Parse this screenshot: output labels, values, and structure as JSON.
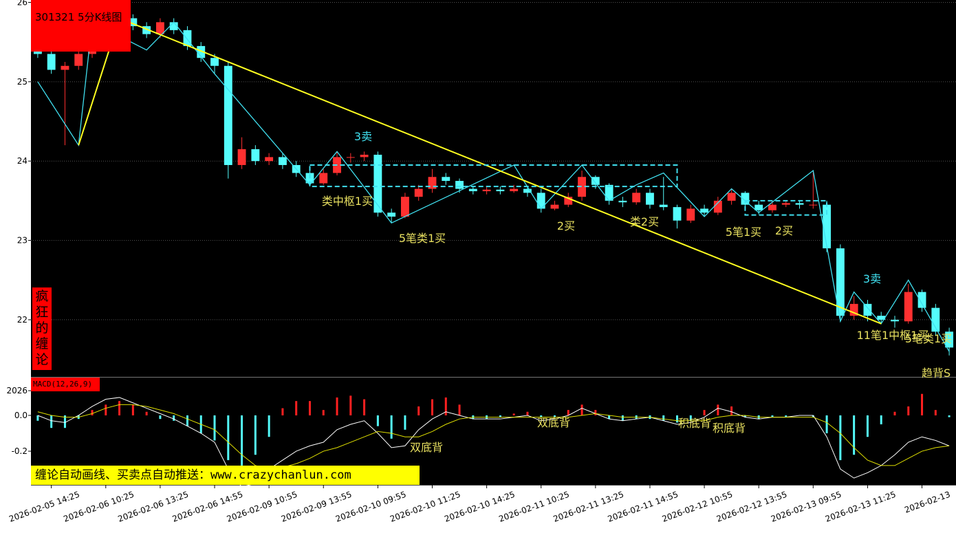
{
  "chart_data": [
    {
      "type": "candlestick",
      "title": "301321 5分K线图",
      "side_label": "疯狂的缠论",
      "banner": "缠论自动画线、买卖点自动推送：www.crazychanlun.com",
      "up_color": "#ff3030",
      "down_color": "#54fcfc",
      "categories": [
        null,
        "2026-02-05 14:25",
        null,
        null,
        null,
        "2026-02-06 10:25",
        null,
        null,
        null,
        "2026-02-06 13:25",
        null,
        null,
        null,
        "2026-02-06 14:55",
        null,
        null,
        null,
        "2026-02-09 10:55",
        null,
        null,
        null,
        "2026-02-09 13:55",
        null,
        null,
        null,
        "2026-02-10 09:55",
        null,
        null,
        null,
        "2026-02-10 11:25",
        null,
        null,
        null,
        "2026-02-10 14:25",
        null,
        null,
        null,
        "2026-02-11 10:25",
        null,
        null,
        null,
        "2026-02-11 13:25",
        null,
        null,
        null,
        "2026-02-11 14:55",
        null,
        null,
        null,
        "2026-02-12 10:55",
        null,
        null,
        null,
        "2026-02-12 13:55",
        null,
        null,
        null,
        "2026-02-13 09:55",
        null,
        null,
        null,
        "2026-02-13 11:25",
        null,
        null,
        null,
        "2026-02-13",
        null,
        null
      ],
      "open": [
        25.4,
        25.35,
        25.15,
        25.2,
        25.35,
        25.55,
        25.7,
        25.8,
        25.7,
        25.6,
        25.75,
        25.65,
        25.45,
        25.3,
        25.2,
        23.95,
        24.15,
        24.0,
        24.05,
        23.95,
        23.85,
        23.72,
        23.85,
        24.05,
        24.05,
        24.08,
        23.35,
        23.3,
        23.55,
        23.65,
        23.8,
        23.75,
        23.65,
        23.62,
        23.64,
        23.62,
        23.65,
        23.6,
        23.4,
        23.45,
        23.55,
        23.8,
        23.7,
        23.5,
        23.48,
        23.6,
        23.45,
        23.42,
        23.25,
        23.4,
        23.35,
        23.5,
        23.6,
        23.45,
        23.38,
        23.45,
        23.47,
        23.45,
        23.45,
        22.9,
        22.05,
        22.2,
        22.05,
        22.0,
        21.98,
        22.35,
        22.15,
        21.85
      ],
      "high": [
        25.45,
        25.4,
        25.25,
        25.4,
        25.6,
        25.75,
        25.85,
        25.85,
        25.75,
        25.8,
        25.8,
        25.7,
        25.5,
        25.35,
        25.25,
        24.3,
        24.2,
        24.1,
        24.1,
        24.0,
        23.9,
        23.9,
        24.12,
        24.1,
        24.12,
        24.12,
        23.4,
        23.6,
        23.7,
        23.9,
        23.85,
        23.78,
        23.68,
        23.68,
        23.68,
        23.7,
        23.68,
        23.65,
        23.5,
        23.6,
        23.88,
        23.82,
        23.72,
        23.55,
        23.65,
        23.65,
        23.8,
        23.45,
        23.45,
        23.45,
        23.55,
        23.65,
        23.62,
        23.5,
        23.5,
        23.5,
        23.5,
        23.88,
        23.5,
        22.95,
        22.3,
        22.25,
        22.1,
        22.05,
        22.45,
        22.38,
        22.2,
        21.9
      ],
      "low": [
        25.3,
        25.1,
        24.2,
        25.15,
        25.3,
        25.5,
        25.65,
        25.65,
        25.55,
        25.55,
        25.6,
        25.4,
        25.25,
        25.1,
        23.78,
        23.9,
        23.95,
        23.95,
        23.9,
        23.8,
        23.68,
        23.7,
        23.82,
        23.98,
        24.0,
        23.3,
        23.22,
        23.28,
        23.5,
        23.6,
        23.7,
        23.6,
        23.58,
        23.58,
        23.58,
        23.6,
        23.55,
        23.35,
        23.38,
        23.42,
        23.5,
        23.65,
        23.45,
        23.42,
        23.45,
        23.4,
        23.38,
        23.15,
        23.22,
        23.3,
        23.32,
        23.45,
        23.4,
        23.33,
        23.35,
        23.42,
        23.4,
        23.4,
        22.85,
        21.98,
        22.0,
        21.98,
        21.95,
        21.9,
        21.95,
        22.1,
        21.8,
        21.55
      ],
      "close": [
        25.35,
        25.15,
        25.2,
        25.35,
        25.55,
        25.7,
        25.8,
        25.7,
        25.6,
        25.75,
        25.65,
        25.45,
        25.3,
        25.2,
        23.95,
        24.15,
        24.0,
        24.05,
        23.95,
        23.85,
        23.72,
        23.85,
        24.05,
        24.05,
        24.08,
        23.35,
        23.3,
        23.55,
        23.65,
        23.8,
        23.75,
        23.65,
        23.62,
        23.64,
        23.62,
        23.65,
        23.6,
        23.4,
        23.45,
        23.55,
        23.8,
        23.7,
        23.5,
        23.48,
        23.6,
        23.45,
        23.42,
        23.25,
        23.4,
        23.35,
        23.5,
        23.6,
        23.45,
        23.38,
        23.45,
        23.47,
        23.45,
        23.45,
        22.9,
        22.05,
        22.2,
        22.05,
        22.0,
        21.98,
        22.35,
        22.15,
        21.85,
        21.65
      ],
      "overlays": [
        {
          "color": "#40e0f0",
          "x": [
            0,
            3,
            4,
            8,
            10,
            13,
            20,
            22,
            26,
            35,
            37,
            40,
            42,
            44,
            46,
            49,
            51,
            53,
            57,
            59,
            60,
            62,
            64,
            67
          ],
          "y": [
            25.0,
            24.2,
            25.75,
            25.4,
            25.75,
            25.1,
            23.7,
            24.12,
            23.22,
            23.95,
            23.4,
            23.95,
            23.5,
            23.7,
            23.85,
            23.3,
            23.65,
            23.35,
            23.88,
            21.98,
            22.35,
            21.95,
            22.5,
            21.6
          ]
        },
        {
          "color": "#ffff20",
          "x": [
            3,
            6,
            62
          ],
          "y": [
            24.2,
            25.8,
            21.95
          ]
        }
      ],
      "boxes": [
        {
          "x": [
            20,
            47
          ],
          "y": [
            23.68,
            23.95
          ]
        },
        {
          "x": [
            52,
            58
          ],
          "y": [
            23.32,
            23.5
          ]
        }
      ],
      "box_color": "#40e0f0",
      "annotations": [
        {
          "text": "3卖",
          "color": "#40e0f0"
        },
        {
          "text": "类中枢1买",
          "color": "#e8e060"
        },
        {
          "text": "5笔类1买",
          "color": "#e8e060"
        },
        {
          "text": "2买",
          "color": "#e8e060"
        },
        {
          "text": "类2买",
          "color": "#e8e060"
        },
        {
          "text": "5笔1买",
          "color": "#e8e060"
        },
        {
          "text": "2买",
          "color": "#e8e060"
        },
        {
          "text": "3卖",
          "color": "#40e0f0"
        },
        {
          "text": "11笔1中枢1买",
          "color": "#e8e060"
        },
        {
          "text": "5笔类1买",
          "color": "#e8e060"
        },
        {
          "text": "趋背S",
          "color": "#e8e060"
        }
      ],
      "ylim": [
        21.28,
        26.03
      ],
      "yticks": [
        22,
        23,
        24,
        25,
        26
      ],
      "grid": true
    },
    {
      "type": "macd",
      "label": "MACD(12,26,9)",
      "pos_color": "#ff2020",
      "neg_color": "#54fcfc",
      "hist": [
        -0.03,
        -0.07,
        -0.07,
        -0.02,
        0.03,
        0.06,
        0.08,
        0.06,
        0.02,
        -0.02,
        -0.03,
        -0.06,
        -0.1,
        -0.14,
        -0.25,
        -0.28,
        -0.22,
        -0.12,
        0.04,
        0.08,
        0.08,
        0.03,
        0.1,
        0.11,
        0.09,
        -0.06,
        -0.13,
        -0.08,
        0.05,
        0.09,
        0.1,
        0.06,
        -0.02,
        -0.02,
        -0.01,
        0.01,
        0.02,
        -0.01,
        -0.01,
        0.03,
        0.06,
        0.03,
        -0.02,
        -0.03,
        -0.02,
        -0.02,
        -0.03,
        -0.04,
        -0.03,
        0.03,
        0.06,
        0.05,
        -0.01,
        -0.02,
        -0.01,
        -0.01,
        0.0,
        -0.01,
        -0.1,
        -0.25,
        -0.22,
        -0.12,
        -0.05,
        0.02,
        0.05,
        0.12,
        0.03,
        -0.01
      ],
      "series": [
        {
          "color": "#ffffff",
          "values": [
            0.0,
            -0.03,
            -0.04,
            0.0,
            0.05,
            0.09,
            0.1,
            0.07,
            0.04,
            0.01,
            -0.02,
            -0.06,
            -0.1,
            -0.15,
            -0.3,
            -0.4,
            -0.38,
            -0.3,
            -0.25,
            -0.2,
            -0.17,
            -0.15,
            -0.08,
            -0.05,
            -0.03,
            -0.1,
            -0.18,
            -0.17,
            -0.08,
            -0.02,
            0.02,
            0.0,
            -0.02,
            -0.02,
            -0.02,
            -0.01,
            0.0,
            -0.03,
            -0.02,
            0.0,
            0.04,
            0.01,
            -0.02,
            -0.03,
            -0.02,
            -0.01,
            -0.03,
            -0.05,
            -0.04,
            -0.01,
            0.04,
            0.02,
            -0.01,
            -0.02,
            -0.01,
            -0.01,
            0.0,
            0.0,
            -0.12,
            -0.3,
            -0.35,
            -0.32,
            -0.28,
            -0.22,
            -0.15,
            -0.12,
            -0.14,
            -0.17
          ]
        },
        {
          "color": "#e0e000",
          "values": [
            0.02,
            0.0,
            -0.01,
            -0.01,
            0.01,
            0.04,
            0.06,
            0.06,
            0.05,
            0.03,
            0.01,
            -0.02,
            -0.05,
            -0.08,
            -0.15,
            -0.22,
            -0.28,
            -0.3,
            -0.29,
            -0.27,
            -0.24,
            -0.2,
            -0.18,
            -0.15,
            -0.12,
            -0.09,
            -0.1,
            -0.12,
            -0.12,
            -0.09,
            -0.05,
            -0.02,
            -0.01,
            -0.01,
            -0.01,
            -0.01,
            -0.01,
            -0.01,
            -0.01,
            -0.01,
            0.0,
            0.01,
            0.0,
            -0.01,
            -0.01,
            -0.01,
            -0.02,
            -0.03,
            -0.03,
            -0.03,
            -0.01,
            0.0,
            0.0,
            -0.01,
            -0.01,
            -0.01,
            -0.01,
            -0.01,
            -0.04,
            -0.1,
            -0.18,
            -0.25,
            -0.28,
            -0.28,
            -0.24,
            -0.2,
            -0.18,
            -0.17
          ]
        }
      ],
      "annotations": [
        {
          "text": "双底背",
          "color": "#e8e060"
        },
        {
          "text": "双底背",
          "color": "#e8e060"
        },
        {
          "text": "积底背",
          "color": "#e8e060"
        },
        {
          "text": "积底背",
          "color": "#e8e060"
        }
      ],
      "ylim": [
        -0.388,
        0.215
      ],
      "yticks": [
        {
          "value": 0.138,
          "label": "2026"
        },
        {
          "value": 0,
          "label": "0.0"
        },
        -0.2
      ]
    }
  ]
}
